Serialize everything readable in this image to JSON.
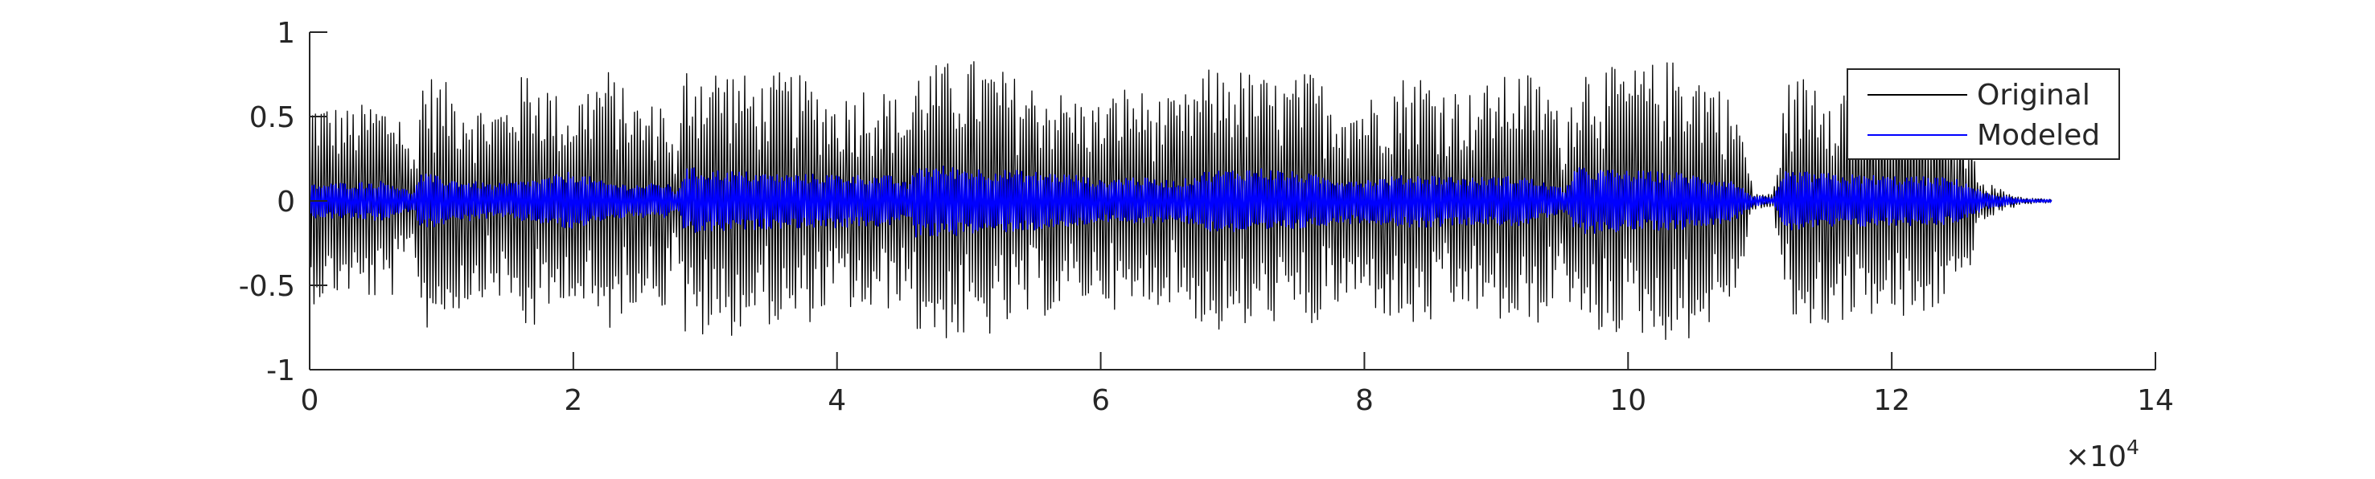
{
  "chart_data": {
    "type": "line",
    "title": "",
    "xlabel": "",
    "ylabel": "",
    "xlim": [
      0,
      140000
    ],
    "ylim": [
      -1,
      1
    ],
    "x_ticks": [
      0,
      20000,
      40000,
      60000,
      80000,
      100000,
      120000,
      140000
    ],
    "x_tick_labels": [
      "0",
      "2",
      "4",
      "6",
      "8",
      "10",
      "12",
      "14"
    ],
    "x_exponent_label": "×10",
    "x_exponent_power": "4",
    "y_ticks": [
      1,
      0.5,
      0,
      -0.5,
      -1
    ],
    "y_tick_labels": [
      "1",
      "0.5",
      "0",
      "-0.5",
      "-1"
    ],
    "grid": false,
    "legend_position": "top-right",
    "series": [
      {
        "name": "Original",
        "color": "#000000",
        "envelope_x": [
          0,
          1500,
          3000,
          5000,
          7000,
          7800,
          8500,
          10000,
          12000,
          13500,
          15000,
          16500,
          18000,
          19500,
          21000,
          22500,
          24000,
          25500,
          27000,
          27800,
          28500,
          30000,
          32000,
          34000,
          36000,
          38000,
          40000,
          42000,
          44000,
          45500,
          46000,
          48000,
          50000,
          52000,
          54000,
          56000,
          58000,
          60000,
          62000,
          64000,
          66000,
          68000,
          70000,
          72000,
          74000,
          76000,
          77500,
          80000,
          82000,
          84000,
          86000,
          88000,
          90000,
          92000,
          94000,
          95200,
          96000,
          98000,
          100000,
          102000,
          104000,
          105500,
          107000,
          108500,
          109500,
          111000,
          112000,
          114000,
          116000,
          118000,
          120000,
          122000,
          124000,
          125500,
          127000,
          128500,
          130000,
          132200
        ],
        "envelope_amp": [
          0.62,
          0.58,
          0.55,
          0.6,
          0.55,
          0.2,
          0.78,
          0.72,
          0.62,
          0.55,
          0.6,
          0.8,
          0.72,
          0.55,
          0.7,
          0.8,
          0.65,
          0.55,
          0.65,
          0.2,
          0.85,
          0.82,
          0.8,
          0.7,
          0.78,
          0.72,
          0.6,
          0.7,
          0.65,
          0.55,
          0.8,
          0.82,
          0.85,
          0.8,
          0.72,
          0.68,
          0.62,
          0.58,
          0.7,
          0.62,
          0.6,
          0.78,
          0.8,
          0.75,
          0.7,
          0.78,
          0.65,
          0.6,
          0.72,
          0.78,
          0.7,
          0.65,
          0.72,
          0.78,
          0.7,
          0.4,
          0.85,
          0.8,
          0.78,
          0.82,
          0.85,
          0.78,
          0.7,
          0.5,
          0.05,
          0.04,
          0.7,
          0.78,
          0.72,
          0.68,
          0.7,
          0.75,
          0.6,
          0.5,
          0.12,
          0.06,
          0.02,
          0.01
        ]
      },
      {
        "name": "Modeled",
        "color": "#0000ff",
        "envelope_x": [
          0,
          3000,
          6000,
          7800,
          8500,
          10000,
          12000,
          14000,
          16000,
          18000,
          20000,
          22000,
          24000,
          25500,
          27000,
          27800,
          28500,
          32000,
          36000,
          40000,
          44000,
          45500,
          46000,
          50000,
          54000,
          58000,
          60000,
          62000,
          64000,
          66000,
          68000,
          72000,
          76000,
          77500,
          80000,
          84000,
          88000,
          92000,
          95200,
          96000,
          100000,
          104000,
          108000,
          109500,
          111000,
          112000,
          116000,
          120000,
          124000,
          125500,
          127000,
          128500,
          130000,
          132200
        ],
        "envelope_amp": [
          0.1,
          0.11,
          0.12,
          0.05,
          0.17,
          0.14,
          0.12,
          0.1,
          0.12,
          0.14,
          0.18,
          0.12,
          0.1,
          0.1,
          0.11,
          0.05,
          0.2,
          0.18,
          0.16,
          0.16,
          0.15,
          0.1,
          0.22,
          0.2,
          0.18,
          0.16,
          0.12,
          0.15,
          0.13,
          0.12,
          0.18,
          0.2,
          0.16,
          0.14,
          0.13,
          0.16,
          0.14,
          0.15,
          0.07,
          0.2,
          0.18,
          0.17,
          0.12,
          0.03,
          0.02,
          0.18,
          0.16,
          0.15,
          0.14,
          0.12,
          0.05,
          0.03,
          0.01,
          0.01
        ]
      }
    ]
  }
}
